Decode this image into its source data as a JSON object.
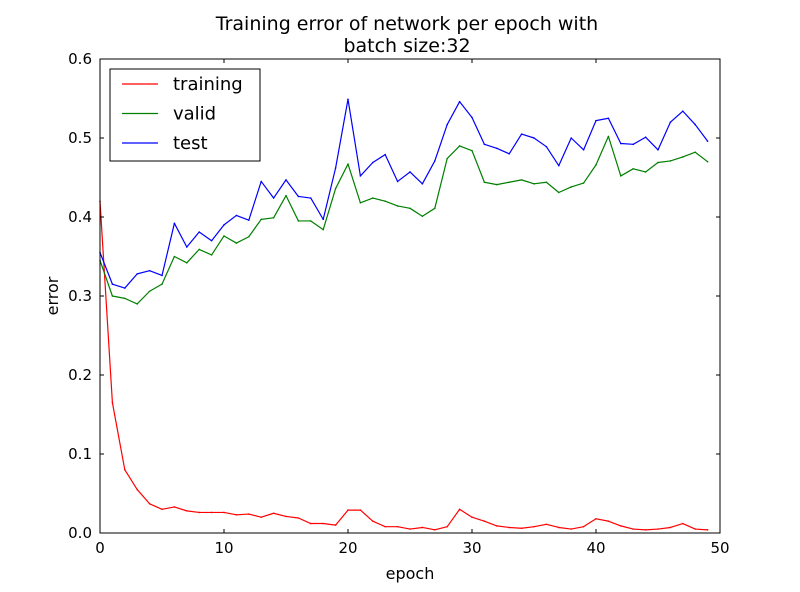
{
  "chart_data": {
    "type": "line",
    "title_lines": [
      "Training error of network per epoch with",
      "batch size:32"
    ],
    "xlabel": "epoch",
    "ylabel": "error",
    "xlim": [
      0,
      50
    ],
    "ylim": [
      0,
      0.6
    ],
    "x_ticks": [
      0,
      10,
      20,
      30,
      40,
      50
    ],
    "y_ticks": [
      0.0,
      0.1,
      0.2,
      0.3,
      0.4,
      0.5,
      0.6
    ],
    "x_tick_labels": [
      "0",
      "10",
      "20",
      "30",
      "40",
      "50"
    ],
    "y_tick_labels": [
      "0.0",
      "0.1",
      "0.2",
      "0.3",
      "0.4",
      "0.5",
      "0.6"
    ],
    "grid": false,
    "legend_position": "top-left",
    "x": [
      0,
      1,
      2,
      3,
      4,
      5,
      6,
      7,
      8,
      9,
      10,
      11,
      12,
      13,
      14,
      15,
      16,
      17,
      18,
      19,
      20,
      21,
      22,
      23,
      24,
      25,
      26,
      27,
      28,
      29,
      30,
      31,
      32,
      33,
      34,
      35,
      36,
      37,
      38,
      39,
      40,
      41,
      42,
      43,
      44,
      45,
      46,
      47,
      48,
      49
    ],
    "series": [
      {
        "name": "training",
        "color": "#ff0000",
        "values": [
          0.42,
          0.165,
          0.08,
          0.055,
          0.037,
          0.03,
          0.033,
          0.028,
          0.026,
          0.026,
          0.026,
          0.023,
          0.024,
          0.02,
          0.025,
          0.021,
          0.019,
          0.012,
          0.012,
          0.01,
          0.029,
          0.029,
          0.015,
          0.008,
          0.008,
          0.005,
          0.007,
          0.004,
          0.008,
          0.03,
          0.02,
          0.015,
          0.009,
          0.007,
          0.006,
          0.008,
          0.011,
          0.007,
          0.005,
          0.008,
          0.018,
          0.015,
          0.009,
          0.005,
          0.004,
          0.005,
          0.007,
          0.012,
          0.005,
          0.004
        ]
      },
      {
        "name": "valid",
        "color": "#008000",
        "values": [
          0.345,
          0.3,
          0.297,
          0.29,
          0.306,
          0.315,
          0.35,
          0.342,
          0.359,
          0.352,
          0.376,
          0.367,
          0.375,
          0.397,
          0.399,
          0.427,
          0.395,
          0.395,
          0.384,
          0.436,
          0.467,
          0.418,
          0.424,
          0.42,
          0.414,
          0.411,
          0.401,
          0.411,
          0.474,
          0.49,
          0.484,
          0.444,
          0.441,
          0.444,
          0.447,
          0.442,
          0.444,
          0.431,
          0.438,
          0.443,
          0.466,
          0.502,
          0.452,
          0.461,
          0.457,
          0.469,
          0.471,
          0.476,
          0.482,
          0.47
        ]
      },
      {
        "name": "test",
        "color": "#0000ff",
        "values": [
          0.355,
          0.315,
          0.31,
          0.328,
          0.332,
          0.326,
          0.392,
          0.362,
          0.381,
          0.37,
          0.39,
          0.402,
          0.396,
          0.445,
          0.424,
          0.447,
          0.426,
          0.424,
          0.397,
          0.462,
          0.549,
          0.452,
          0.469,
          0.479,
          0.445,
          0.457,
          0.442,
          0.471,
          0.517,
          0.546,
          0.526,
          0.492,
          0.487,
          0.48,
          0.505,
          0.5,
          0.489,
          0.465,
          0.5,
          0.485,
          0.522,
          0.525,
          0.493,
          0.492,
          0.501,
          0.485,
          0.52,
          0.534,
          0.517,
          0.496
        ]
      }
    ]
  }
}
